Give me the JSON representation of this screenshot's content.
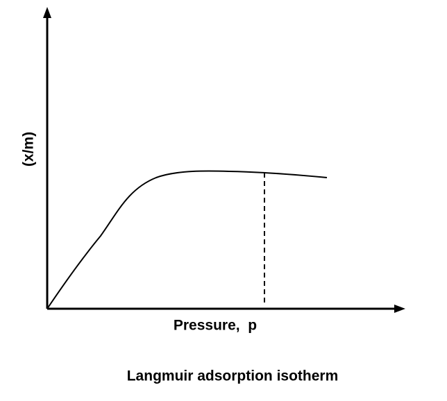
{
  "y_axis_label": "(x/m)",
  "x_axis_label": "Pressure,  p",
  "caption": "Langmuir adsorption isotherm"
}
